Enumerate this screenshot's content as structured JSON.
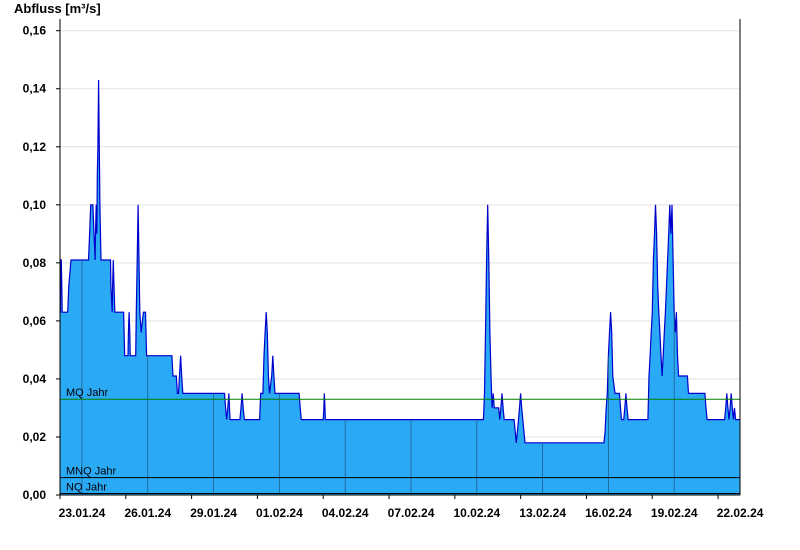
{
  "chart_data": {
    "type": "area",
    "ylabel": "Abfluss [m³/s]",
    "xlabel": "",
    "ylim": [
      0,
      0.163
    ],
    "grid": true,
    "colors": {
      "fill": "#2aa9f5",
      "line": "#0000cc",
      "mq_line": "#008000",
      "low_line": "#000000"
    },
    "yticks": [
      {
        "v": 0.16,
        "label": "0,16"
      },
      {
        "v": 0.14,
        "label": "0,14"
      },
      {
        "v": 0.12,
        "label": "0,12"
      },
      {
        "v": 0.1,
        "label": "0,10"
      },
      {
        "v": 0.08,
        "label": "0,08"
      },
      {
        "v": 0.06,
        "label": "0,06"
      },
      {
        "v": 0.04,
        "label": "0,04"
      },
      {
        "v": 0.02,
        "label": "0,02"
      },
      {
        "v": 0.0,
        "label": "0,00"
      }
    ],
    "xrange_days": [
      0,
      30
    ],
    "xticks": [
      {
        "d": 1,
        "label": "23.01.24"
      },
      {
        "d": 4,
        "label": "26.01.24"
      },
      {
        "d": 7,
        "label": "29.01.24"
      },
      {
        "d": 10,
        "label": "01.02.24"
      },
      {
        "d": 13,
        "label": "04.02.24"
      },
      {
        "d": 16,
        "label": "07.02.24"
      },
      {
        "d": 19,
        "label": "10.02.24"
      },
      {
        "d": 22,
        "label": "13.02.24"
      },
      {
        "d": 25,
        "label": "16.02.24"
      },
      {
        "d": 28,
        "label": "19.02.24"
      },
      {
        "d": 31,
        "label": "22.02.24"
      }
    ],
    "reference_lines": [
      {
        "name": "MQ Jahr",
        "value": 0.033
      },
      {
        "name": "MNQ Jahr",
        "value": 0.006
      },
      {
        "name": "NQ Jahr",
        "value": 0.0005
      }
    ],
    "series": [
      {
        "points": [
          [
            0.0,
            0.063
          ],
          [
            0.02,
            0.063
          ],
          [
            0.04,
            0.081
          ],
          [
            0.06,
            0.081
          ],
          [
            0.08,
            0.072
          ],
          [
            0.1,
            0.063
          ],
          [
            0.35,
            0.063
          ],
          [
            0.4,
            0.072
          ],
          [
            0.5,
            0.081
          ],
          [
            1.3,
            0.081
          ],
          [
            1.35,
            0.09
          ],
          [
            1.4,
            0.1
          ],
          [
            1.5,
            0.1
          ],
          [
            1.55,
            0.09
          ],
          [
            1.6,
            0.081
          ],
          [
            1.62,
            0.09
          ],
          [
            1.65,
            0.1
          ],
          [
            1.68,
            0.09
          ],
          [
            1.7,
            0.11
          ],
          [
            1.73,
            0.12
          ],
          [
            1.76,
            0.143
          ],
          [
            1.79,
            0.12
          ],
          [
            1.82,
            0.1
          ],
          [
            1.87,
            0.081
          ],
          [
            2.3,
            0.081
          ],
          [
            2.32,
            0.072
          ],
          [
            2.38,
            0.063
          ],
          [
            2.4,
            0.072
          ],
          [
            2.43,
            0.081
          ],
          [
            2.46,
            0.072
          ],
          [
            2.5,
            0.063
          ],
          [
            2.9,
            0.063
          ],
          [
            2.95,
            0.048
          ],
          [
            3.1,
            0.048
          ],
          [
            3.12,
            0.056
          ],
          [
            3.15,
            0.063
          ],
          [
            3.18,
            0.056
          ],
          [
            3.2,
            0.048
          ],
          [
            3.45,
            0.048
          ],
          [
            3.48,
            0.063
          ],
          [
            3.52,
            0.081
          ],
          [
            3.56,
            0.1
          ],
          [
            3.6,
            0.081
          ],
          [
            3.64,
            0.063
          ],
          [
            3.7,
            0.056
          ],
          [
            3.8,
            0.063
          ],
          [
            3.9,
            0.063
          ],
          [
            3.95,
            0.048
          ],
          [
            5.1,
            0.048
          ],
          [
            5.15,
            0.041
          ],
          [
            5.3,
            0.041
          ],
          [
            5.35,
            0.035
          ],
          [
            5.4,
            0.035
          ],
          [
            5.45,
            0.041
          ],
          [
            5.5,
            0.048
          ],
          [
            5.55,
            0.041
          ],
          [
            5.6,
            0.035
          ],
          [
            7.5,
            0.035
          ],
          [
            7.55,
            0.03
          ],
          [
            7.6,
            0.026
          ],
          [
            7.65,
            0.03
          ],
          [
            7.7,
            0.035
          ],
          [
            7.75,
            0.026
          ],
          [
            8.2,
            0.026
          ],
          [
            8.25,
            0.03
          ],
          [
            8.3,
            0.035
          ],
          [
            8.35,
            0.03
          ],
          [
            8.4,
            0.026
          ],
          [
            9.1,
            0.026
          ],
          [
            9.15,
            0.035
          ],
          [
            9.25,
            0.035
          ],
          [
            9.3,
            0.048
          ],
          [
            9.35,
            0.056
          ],
          [
            9.4,
            0.063
          ],
          [
            9.45,
            0.056
          ],
          [
            9.5,
            0.041
          ],
          [
            9.55,
            0.035
          ],
          [
            9.65,
            0.041
          ],
          [
            9.7,
            0.048
          ],
          [
            9.75,
            0.041
          ],
          [
            9.8,
            0.035
          ],
          [
            10.9,
            0.035
          ],
          [
            10.95,
            0.03
          ],
          [
            11.0,
            0.026
          ],
          [
            12.0,
            0.026
          ],
          [
            12.03,
            0.03
          ],
          [
            12.05,
            0.035
          ],
          [
            12.08,
            0.03
          ],
          [
            12.1,
            0.026
          ],
          [
            19.3,
            0.026
          ],
          [
            19.35,
            0.035
          ],
          [
            19.4,
            0.056
          ],
          [
            19.45,
            0.081
          ],
          [
            19.5,
            0.1
          ],
          [
            19.55,
            0.081
          ],
          [
            19.6,
            0.056
          ],
          [
            19.65,
            0.041
          ],
          [
            19.7,
            0.03
          ],
          [
            19.75,
            0.035
          ],
          [
            19.8,
            0.03
          ],
          [
            20.0,
            0.03
          ],
          [
            20.05,
            0.026
          ],
          [
            20.1,
            0.03
          ],
          [
            20.15,
            0.035
          ],
          [
            20.2,
            0.03
          ],
          [
            20.25,
            0.026
          ],
          [
            20.7,
            0.026
          ],
          [
            20.75,
            0.022
          ],
          [
            20.8,
            0.018
          ],
          [
            20.85,
            0.022
          ],
          [
            20.9,
            0.026
          ],
          [
            20.95,
            0.03
          ],
          [
            21.0,
            0.035
          ],
          [
            21.05,
            0.03
          ],
          [
            21.1,
            0.026
          ],
          [
            21.15,
            0.022
          ],
          [
            21.2,
            0.018
          ],
          [
            24.8,
            0.018
          ],
          [
            24.85,
            0.022
          ],
          [
            24.9,
            0.03
          ],
          [
            24.95,
            0.035
          ],
          [
            25.0,
            0.048
          ],
          [
            25.05,
            0.056
          ],
          [
            25.1,
            0.063
          ],
          [
            25.15,
            0.056
          ],
          [
            25.2,
            0.041
          ],
          [
            25.3,
            0.035
          ],
          [
            25.5,
            0.035
          ],
          [
            25.55,
            0.03
          ],
          [
            25.6,
            0.026
          ],
          [
            25.7,
            0.026
          ],
          [
            25.75,
            0.03
          ],
          [
            25.8,
            0.035
          ],
          [
            25.85,
            0.03
          ],
          [
            25.9,
            0.026
          ],
          [
            26.8,
            0.026
          ],
          [
            26.85,
            0.041
          ],
          [
            26.9,
            0.048
          ],
          [
            26.95,
            0.056
          ],
          [
            27.0,
            0.063
          ],
          [
            27.05,
            0.081
          ],
          [
            27.1,
            0.09
          ],
          [
            27.15,
            0.1
          ],
          [
            27.2,
            0.09
          ],
          [
            27.25,
            0.072
          ],
          [
            27.3,
            0.063
          ],
          [
            27.35,
            0.056
          ],
          [
            27.4,
            0.048
          ],
          [
            27.45,
            0.041
          ],
          [
            27.5,
            0.048
          ],
          [
            27.55,
            0.056
          ],
          [
            27.6,
            0.063
          ],
          [
            27.65,
            0.072
          ],
          [
            27.7,
            0.081
          ],
          [
            27.75,
            0.09
          ],
          [
            27.8,
            0.1
          ],
          [
            27.85,
            0.09
          ],
          [
            27.9,
            0.1
          ],
          [
            27.95,
            0.081
          ],
          [
            28.0,
            0.063
          ],
          [
            28.05,
            0.056
          ],
          [
            28.1,
            0.063
          ],
          [
            28.15,
            0.048
          ],
          [
            28.2,
            0.041
          ],
          [
            28.6,
            0.041
          ],
          [
            28.65,
            0.035
          ],
          [
            29.4,
            0.035
          ],
          [
            29.45,
            0.03
          ],
          [
            29.5,
            0.026
          ],
          [
            30.3,
            0.026
          ],
          [
            30.35,
            0.03
          ],
          [
            30.4,
            0.035
          ],
          [
            30.45,
            0.03
          ],
          [
            30.5,
            0.026
          ],
          [
            30.55,
            0.03
          ],
          [
            30.6,
            0.035
          ],
          [
            30.65,
            0.03
          ],
          [
            30.7,
            0.026
          ],
          [
            30.75,
            0.03
          ],
          [
            30.8,
            0.026
          ],
          [
            31.0,
            0.026
          ]
        ]
      }
    ]
  }
}
